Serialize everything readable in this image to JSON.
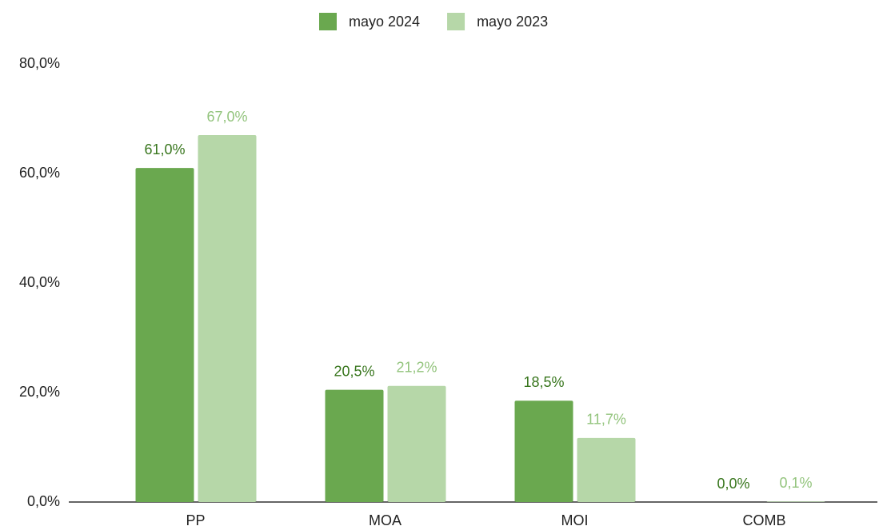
{
  "chart_data": {
    "type": "bar",
    "categories": [
      "PP",
      "MOA",
      "MOI",
      "COMB"
    ],
    "series": [
      {
        "name": "mayo 2024",
        "color": "#6aa84f",
        "values": [
          61.0,
          20.5,
          18.5,
          0.0
        ],
        "value_labels": [
          "61,0%",
          "20,5%",
          "18,5%",
          "0,0%"
        ]
      },
      {
        "name": "mayo 2023",
        "color": "#b6d7a8",
        "values": [
          67.0,
          21.2,
          11.7,
          0.1
        ],
        "value_labels": [
          "67,0%",
          "21,2%",
          "11,7%",
          "0,1%"
        ]
      }
    ],
    "ylim": [
      0,
      80
    ],
    "yticks": [
      {
        "value": 0,
        "label": "0,0%"
      },
      {
        "value": 20,
        "label": "20,0%"
      },
      {
        "value": 40,
        "label": "40,0%"
      },
      {
        "value": 60,
        "label": "60,0%"
      },
      {
        "value": 80,
        "label": "80,0%"
      }
    ],
    "grid": false,
    "legend": "top"
  }
}
